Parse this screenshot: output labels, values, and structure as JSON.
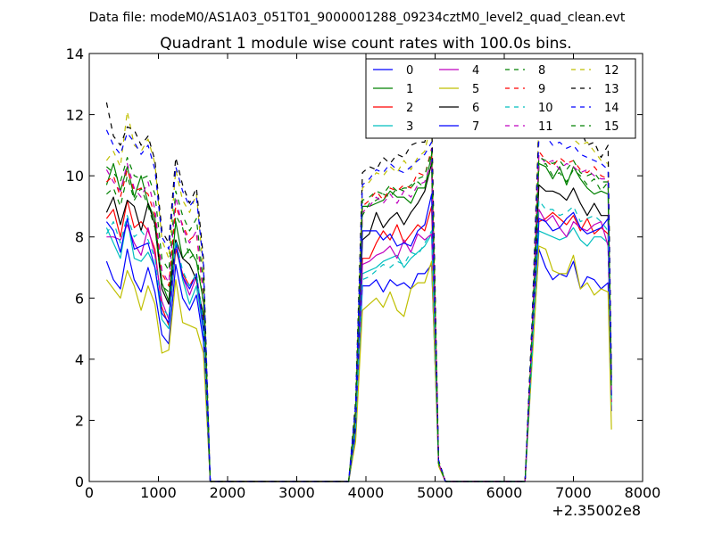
{
  "figure": {
    "suptitle": "Data file: modeM0/AS1A03_051T01_9000001288_09234cztM0_level2_quad_clean.evt",
    "title": "Quadrant 1 module wise count rates with 100.0s bins.",
    "x_offset_label": "+2.35002e8"
  },
  "chart_data": {
    "type": "line",
    "title": "Quadrant 1 module wise count rates with 100.0s bins.",
    "xlabel": "",
    "ylabel": "",
    "xlim": [
      0,
      8000
    ],
    "ylim": [
      0,
      14
    ],
    "x_offset": 235002000,
    "x_ticks": [
      0,
      1000,
      2000,
      3000,
      4000,
      5000,
      6000,
      7000,
      8000
    ],
    "y_ticks": [
      0,
      2,
      4,
      6,
      8,
      10,
      12,
      14
    ],
    "grid": false,
    "legend": {
      "placement": "top-right",
      "ncol": 4
    },
    "x": [
      250,
      350,
      450,
      550,
      650,
      750,
      850,
      950,
      1050,
      1150,
      1250,
      1350,
      1450,
      1550,
      1650,
      1750,
      1850,
      2550,
      3750,
      3850,
      3950,
      4050,
      4150,
      4250,
      4350,
      4450,
      4550,
      4650,
      4750,
      4850,
      4950,
      5050,
      5150,
      5250,
      6300,
      6400,
      6500,
      6600,
      6700,
      6800,
      6900,
      7000,
      7100,
      7200,
      7300,
      7400,
      7500,
      7550
    ],
    "series": [
      {
        "name": "0",
        "color": "#0000ff",
        "dash": "solid",
        "values": [
          7.2,
          6.6,
          6.3,
          7.6,
          6.6,
          6.2,
          7.0,
          6.2,
          4.8,
          4.5,
          7.1,
          6.0,
          5.6,
          6.1,
          4.6,
          0.0,
          0.0,
          0.0,
          0.0,
          1.4,
          6.4,
          6.4,
          6.6,
          6.2,
          6.6,
          6.4,
          6.5,
          6.3,
          6.8,
          6.8,
          7.1,
          0.6,
          0.0,
          0.0,
          0.0,
          4.0,
          7.6,
          7.0,
          6.6,
          6.8,
          6.7,
          7.2,
          6.3,
          6.7,
          6.6,
          6.3,
          6.5,
          2.3
        ]
      },
      {
        "name": "1",
        "color": "#008000",
        "dash": "solid",
        "values": [
          9.7,
          10.4,
          9.5,
          10.3,
          9.3,
          10.0,
          9.1,
          8.6,
          6.5,
          5.9,
          8.5,
          7.3,
          7.6,
          7.2,
          5.9,
          0.0,
          0.0,
          0.0,
          0.0,
          2.2,
          9.0,
          9.0,
          9.1,
          9.2,
          9.5,
          9.3,
          9.3,
          9.1,
          9.6,
          9.6,
          10.7,
          0.6,
          0.0,
          0.0,
          0.0,
          4.5,
          10.4,
          10.3,
          9.9,
          10.3,
          9.7,
          10.3,
          9.9,
          9.6,
          9.4,
          9.5,
          9.4,
          2.8
        ]
      },
      {
        "name": "2",
        "color": "#ff0000",
        "dash": "solid",
        "values": [
          8.6,
          8.9,
          8.0,
          9.2,
          8.3,
          8.5,
          8.2,
          7.6,
          5.7,
          5.1,
          7.6,
          6.8,
          6.4,
          6.8,
          5.1,
          0.0,
          0.0,
          0.0,
          0.0,
          1.8,
          7.3,
          7.3,
          7.8,
          8.2,
          7.9,
          8.4,
          7.8,
          8.1,
          8.4,
          8.2,
          9.0,
          0.6,
          0.0,
          0.0,
          0.0,
          4.2,
          8.5,
          8.6,
          8.8,
          8.6,
          8.4,
          8.7,
          8.2,
          8.6,
          8.1,
          8.3,
          8.1,
          2.6
        ]
      },
      {
        "name": "3",
        "color": "#00bfbf",
        "dash": "solid",
        "values": [
          8.3,
          7.8,
          7.3,
          8.6,
          7.3,
          7.2,
          7.5,
          7.0,
          5.3,
          5.0,
          7.8,
          6.6,
          5.8,
          6.4,
          4.9,
          0.0,
          0.0,
          0.0,
          0.0,
          1.6,
          6.8,
          6.9,
          7.0,
          7.2,
          7.3,
          7.4,
          7.0,
          7.3,
          7.5,
          7.7,
          8.1,
          0.6,
          0.0,
          0.0,
          0.0,
          4.1,
          8.2,
          8.1,
          8.0,
          7.9,
          8.0,
          8.3,
          7.9,
          7.7,
          8.0,
          8.0,
          7.8,
          2.5
        ]
      },
      {
        "name": "4",
        "color": "#bf00bf",
        "dash": "solid",
        "values": [
          8.0,
          8.0,
          7.9,
          8.4,
          7.8,
          7.4,
          8.3,
          7.4,
          5.9,
          5.3,
          7.9,
          6.7,
          6.1,
          6.7,
          5.0,
          0.0,
          0.0,
          0.0,
          0.0,
          1.7,
          7.1,
          7.2,
          7.4,
          7.5,
          7.7,
          7.3,
          7.9,
          7.5,
          8.1,
          7.9,
          8.1,
          0.6,
          0.0,
          0.0,
          0.0,
          4.3,
          8.9,
          8.5,
          8.7,
          8.3,
          8.0,
          8.5,
          8.3,
          8.2,
          8.4,
          8.5,
          7.7,
          2.6
        ]
      },
      {
        "name": "5",
        "color": "#bfbf00",
        "dash": "solid",
        "values": [
          6.6,
          6.3,
          6.0,
          6.9,
          6.4,
          5.6,
          6.4,
          5.8,
          4.2,
          4.3,
          6.6,
          5.2,
          5.1,
          5.0,
          4.2,
          0.0,
          0.0,
          0.0,
          0.0,
          1.3,
          5.6,
          5.8,
          6.0,
          5.7,
          6.2,
          5.6,
          5.4,
          6.3,
          6.5,
          6.5,
          7.2,
          0.5,
          0.0,
          0.0,
          0.0,
          3.8,
          7.7,
          7.6,
          6.9,
          6.8,
          6.8,
          7.4,
          6.3,
          6.5,
          6.1,
          6.3,
          6.2,
          1.7
        ]
      },
      {
        "name": "6",
        "color": "#000000",
        "dash": "solid",
        "values": [
          8.8,
          9.3,
          8.4,
          9.2,
          9.0,
          8.2,
          9.1,
          8.4,
          6.3,
          5.8,
          7.9,
          7.3,
          7.1,
          6.6,
          5.4,
          0.0,
          0.0,
          0.0,
          0.0,
          1.9,
          7.9,
          8.1,
          8.8,
          8.3,
          8.6,
          8.8,
          8.4,
          8.8,
          9.1,
          9.5,
          10.4,
          0.6,
          0.0,
          0.0,
          0.0,
          4.6,
          9.7,
          9.5,
          9.5,
          9.4,
          9.2,
          9.6,
          9.1,
          8.7,
          9.1,
          8.7,
          8.7,
          3.4
        ]
      },
      {
        "name": "7",
        "color": "#0000ff",
        "dash": "solid",
        "values": [
          8.5,
          8.2,
          7.5,
          8.6,
          7.6,
          7.7,
          7.8,
          7.0,
          5.5,
          5.2,
          7.8,
          6.7,
          6.3,
          6.8,
          5.0,
          0.0,
          0.0,
          0.0,
          0.0,
          1.7,
          8.2,
          8.2,
          8.2,
          7.9,
          8.1,
          7.7,
          7.8,
          7.7,
          8.2,
          8.4,
          9.4,
          0.6,
          0.0,
          0.0,
          0.0,
          4.4,
          8.6,
          8.5,
          8.2,
          8.3,
          8.6,
          8.8,
          8.3,
          8.1,
          8.2,
          8.3,
          8.6,
          2.8
        ]
      },
      {
        "name": "8",
        "color": "#008000",
        "dash": "dashed",
        "values": [
          9.4,
          9.6,
          9.0,
          10.0,
          9.2,
          9.6,
          9.0,
          8.3,
          6.4,
          6.2,
          8.7,
          8.3,
          7.3,
          7.5,
          5.8,
          0.0,
          0.0,
          0.0,
          0.0,
          2.1,
          8.7,
          9.1,
          9.2,
          9.4,
          9.3,
          9.6,
          9.5,
          9.7,
          9.8,
          9.6,
          10.3,
          0.6,
          0.0,
          0.0,
          0.0,
          4.6,
          10.3,
          10.4,
          10.0,
          10.1,
          9.8,
          10.2,
          10.0,
          9.7,
          9.9,
          9.5,
          9.8,
          3.1
        ]
      },
      {
        "name": "9",
        "color": "#ff0000",
        "dash": "dashed",
        "values": [
          9.8,
          10.0,
          9.3,
          10.2,
          9.5,
          9.6,
          9.4,
          8.7,
          6.8,
          6.4,
          9.0,
          8.4,
          7.9,
          8.1,
          6.1,
          0.0,
          0.0,
          0.0,
          0.0,
          2.2,
          9.0,
          9.2,
          9.5,
          9.2,
          9.6,
          9.5,
          9.7,
          9.6,
          10.1,
          10.0,
          10.9,
          0.6,
          0.0,
          0.0,
          0.0,
          4.7,
          10.8,
          10.5,
          10.3,
          10.6,
          10.4,
          10.5,
          10.2,
          10.1,
          10.3,
          10.0,
          9.9,
          3.2
        ]
      },
      {
        "name": "10",
        "color": "#00bfbf",
        "dash": "dashed",
        "values": [
          8.1,
          8.5,
          7.8,
          8.7,
          8.0,
          8.2,
          7.9,
          7.3,
          5.7,
          5.4,
          7.9,
          6.9,
          6.4,
          6.8,
          5.2,
          0.0,
          0.0,
          0.0,
          0.0,
          1.8,
          6.6,
          6.7,
          6.9,
          7.1,
          7.0,
          7.2,
          7.1,
          7.5,
          7.4,
          7.8,
          8.2,
          0.6,
          0.0,
          0.0,
          0.0,
          4.0,
          9.2,
          8.9,
          8.9,
          8.7,
          8.8,
          9.0,
          8.5,
          8.6,
          8.7,
          8.5,
          8.2,
          2.7
        ]
      },
      {
        "name": "11",
        "color": "#bf00bf",
        "dash": "dashed",
        "values": [
          10.2,
          9.8,
          9.5,
          10.4,
          9.6,
          9.3,
          9.8,
          8.9,
          6.9,
          6.5,
          9.3,
          8.3,
          7.8,
          8.2,
          6.2,
          0.0,
          0.0,
          0.0,
          0.0,
          2.2,
          8.8,
          9.0,
          9.3,
          9.1,
          9.4,
          9.1,
          9.5,
          9.3,
          9.7,
          9.8,
          10.5,
          0.6,
          0.0,
          0.0,
          0.0,
          4.6,
          10.7,
          10.4,
          10.5,
          10.2,
          10.4,
          10.3,
          10.1,
          10.2,
          10.0,
          9.9,
          9.9,
          3.0
        ]
      },
      {
        "name": "12",
        "color": "#bfbf00",
        "dash": "dashed",
        "values": [
          10.5,
          10.8,
          10.3,
          12.1,
          11.0,
          10.8,
          11.2,
          10.4,
          7.9,
          7.3,
          10.2,
          9.2,
          8.8,
          9.4,
          6.9,
          0.0,
          0.0,
          0.0,
          0.0,
          2.4,
          9.6,
          9.8,
          10.1,
          10.0,
          10.3,
          10.1,
          10.5,
          10.2,
          10.6,
          10.8,
          11.8,
          0.7,
          0.0,
          0.0,
          0.0,
          5.0,
          11.8,
          11.5,
          11.4,
          11.3,
          11.5,
          11.2,
          11.0,
          11.1,
          10.8,
          10.5,
          10.4,
          3.4
        ]
      },
      {
        "name": "13",
        "color": "#000000",
        "dash": "dashed",
        "values": [
          12.4,
          11.3,
          11.0,
          11.6,
          11.5,
          11.0,
          11.3,
          10.5,
          8.2,
          7.8,
          10.6,
          9.7,
          9.1,
          9.6,
          7.3,
          0.0,
          0.0,
          0.0,
          0.0,
          2.6,
          10.1,
          10.3,
          10.2,
          10.6,
          10.4,
          10.7,
          10.6,
          11.0,
          11.1,
          11.1,
          12.0,
          0.7,
          0.0,
          0.0,
          0.0,
          5.2,
          11.7,
          12.2,
          12.5,
          12.0,
          12.3,
          11.6,
          11.5,
          11.0,
          11.1,
          10.6,
          11.0,
          3.5
        ]
      },
      {
        "name": "14",
        "color": "#0000ff",
        "dash": "dashed",
        "values": [
          11.5,
          11.0,
          10.7,
          11.4,
          11.1,
          10.7,
          11.0,
          10.2,
          8.0,
          7.6,
          10.3,
          9.5,
          9.0,
          9.3,
          7.1,
          0.0,
          0.0,
          0.0,
          0.0,
          2.5,
          9.7,
          9.9,
          10.2,
          10.1,
          10.4,
          10.2,
          10.1,
          10.3,
          10.5,
          10.7,
          11.1,
          0.7,
          0.0,
          0.0,
          0.0,
          5.0,
          11.2,
          11.3,
          11.0,
          11.1,
          10.9,
          11.0,
          10.7,
          10.6,
          10.5,
          10.4,
          10.2,
          3.2
        ]
      },
      {
        "name": "15",
        "color": "#008000",
        "dash": "dashed",
        "values": [
          10.3,
          10.1,
          9.8,
          10.6,
          10.0,
          9.9,
          10.0,
          9.4,
          7.3,
          6.9,
          9.5,
          8.7,
          8.2,
          8.6,
          6.5,
          0.0,
          0.0,
          0.0,
          0.0,
          2.3,
          9.2,
          9.3,
          9.5,
          9.4,
          9.7,
          9.5,
          9.6,
          9.6,
          9.9,
          10.0,
          10.8,
          0.6,
          0.0,
          0.0,
          0.0,
          4.7,
          10.6,
          10.5,
          10.4,
          10.5,
          10.2,
          10.5,
          10.1,
          10.0,
          10.1,
          9.8,
          9.8,
          3.0
        ]
      }
    ]
  }
}
